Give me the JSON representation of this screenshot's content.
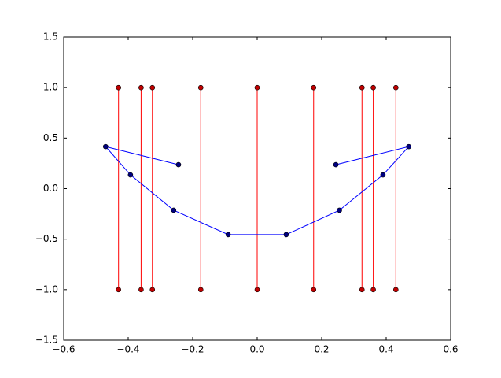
{
  "chart_data": {
    "type": "line",
    "xlim": [
      -0.6,
      0.6
    ],
    "ylim": [
      -1.5,
      1.5
    ],
    "xticks": [
      {
        "value": -0.6,
        "label": "−0.6"
      },
      {
        "value": -0.4,
        "label": "−0.4"
      },
      {
        "value": -0.2,
        "label": "−0.2"
      },
      {
        "value": 0,
        "label": "0.0"
      },
      0.2,
      0.4,
      0.6
    ],
    "yticks": [
      {
        "value": -1.5,
        "label": "−1.5"
      },
      {
        "value": -1,
        "label": "−1.0"
      },
      {
        "value": -0.5,
        "label": "−0.5"
      },
      {
        "value": 0,
        "label": "0.0"
      },
      0.5,
      {
        "value": 1,
        "label": "1.0"
      },
      1.5
    ],
    "series": [
      {
        "color": "#ff0000",
        "x": [
          -0.43,
          -0.43
        ],
        "values": [
          1,
          -1
        ]
      },
      {
        "color": "#ff0000",
        "x": [
          -0.36,
          -0.36
        ],
        "values": [
          1,
          -1
        ]
      },
      {
        "color": "#ff0000",
        "x": [
          -0.325,
          -0.325
        ],
        "values": [
          1,
          -1
        ]
      },
      {
        "color": "#ff0000",
        "x": [
          -0.175,
          -0.175
        ],
        "values": [
          1,
          -1
        ]
      },
      {
        "color": "#ff0000",
        "x": [
          0,
          0
        ],
        "values": [
          1,
          -1
        ]
      },
      {
        "color": "#ff0000",
        "x": [
          0.175,
          0.175
        ],
        "values": [
          1,
          -1
        ]
      },
      {
        "color": "#ff0000",
        "x": [
          0.325,
          0.325
        ],
        "values": [
          1,
          -1
        ]
      },
      {
        "color": "#ff0000",
        "x": [
          0.36,
          0.36
        ],
        "values": [
          1,
          -1
        ]
      },
      {
        "color": "#ff0000",
        "x": [
          0.43,
          0.43
        ],
        "values": [
          1,
          -1
        ]
      },
      {
        "color": "#0000ff",
        "x": [
          -0.244,
          -0.47,
          -0.393,
          -0.259,
          -0.09,
          0.09,
          0.255,
          0.39,
          0.47,
          0.244
        ],
        "values": [
          0.237,
          0.416,
          0.136,
          -0.214,
          -0.455,
          -0.455,
          -0.214,
          0.136,
          0.416,
          0.237
        ]
      }
    ]
  }
}
